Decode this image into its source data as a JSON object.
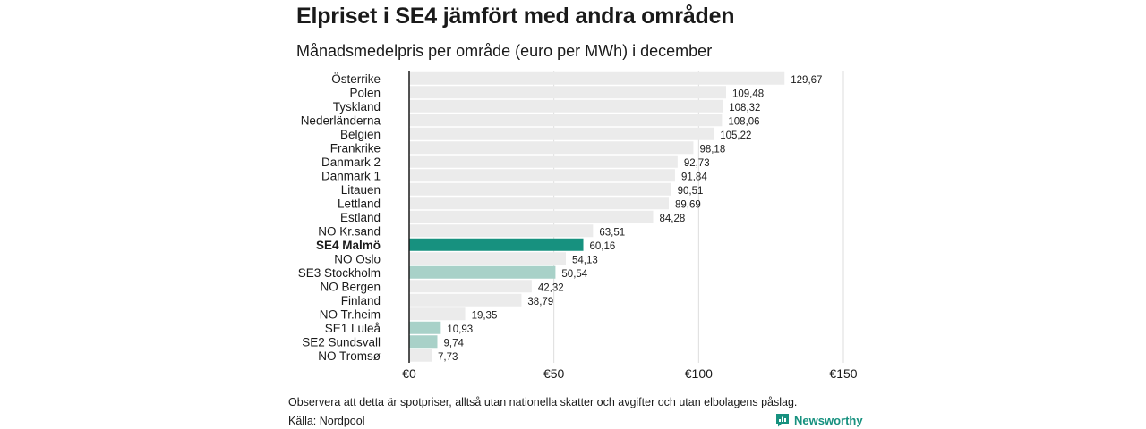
{
  "header": {
    "title": "Elpriset i SE4 jämfört med andra områden",
    "subtitle": "Månadsmedelpris per område (euro per MWh) i december"
  },
  "footer": {
    "note": "Observera att detta är spotpriser, alltså utan nationella skatter och avgifter och utan elbolagens påslag.",
    "source": "Källa: Nordpool",
    "brand": "Newsworthy",
    "brand_icon": "bar-chart-logo-icon"
  },
  "colors": {
    "default_bar": "#ebebeb",
    "highlight_bar": "#17917f",
    "swedish_bar": "#a8d1c8",
    "grid": "#dddddd",
    "axis": "#1a1a1a",
    "brand": "#17917f"
  },
  "chart_data": {
    "type": "bar",
    "orientation": "horizontal",
    "title": "Elpriset i SE4 jämfört med andra områden",
    "subtitle": "Månadsmedelpris per område (euro per MWh) i december",
    "xlim": [
      0,
      150
    ],
    "xticks": [
      0,
      50,
      100,
      150
    ],
    "xtick_labels": [
      "€0",
      "€50",
      "€100",
      "€150"
    ],
    "grid": true,
    "categories": [
      "Österrike",
      "Polen",
      "Tyskland",
      "Nederländerna",
      "Belgien",
      "Frankrike",
      "Danmark  2",
      "Danmark  1",
      "Litauen",
      "Lettland",
      "Estland",
      "NO Kr.sand",
      "SE4 Malmö",
      "NO Oslo",
      "SE3  Stockholm",
      "NO Bergen",
      "Finland",
      "NO Tr.heim",
      "SE1  Luleå",
      "SE2  Sundsvall",
      "NO Tromsø"
    ],
    "values": [
      129.67,
      109.48,
      108.32,
      108.06,
      105.22,
      98.18,
      92.73,
      91.84,
      90.51,
      89.69,
      84.28,
      63.51,
      60.16,
      54.13,
      50.54,
      42.32,
      38.79,
      19.35,
      10.93,
      9.74,
      7.73
    ],
    "value_labels": [
      "129,67",
      "109,48",
      "108,32",
      "108,06",
      "105,22",
      "98,18",
      "92,73",
      "91,84",
      "90,51",
      "89,69",
      "84,28",
      "63,51",
      "60,16",
      "54,13",
      "50,54",
      "42,32",
      "38,79",
      "19,35",
      "10,93",
      "9,74",
      "7,73"
    ],
    "highlight": "SE4 Malmö",
    "swedish_areas": [
      "SE3  Stockholm",
      "SE1  Luleå",
      "SE2  Sundsvall"
    ]
  }
}
